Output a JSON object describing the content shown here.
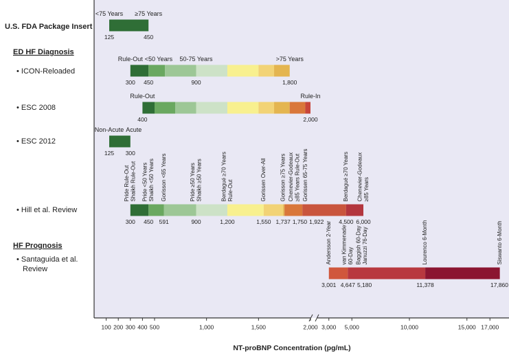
{
  "chart_data": {
    "type": "threshold-bands",
    "x_label": "NT-proBNP Concentration (pg/mL)",
    "xlim_segments": [
      [
        0,
        500
      ],
      [
        500,
        2000
      ],
      [
        2000,
        18000
      ]
    ],
    "xticks": [
      100,
      200,
      300,
      400,
      500,
      {
        "value": 1000,
        "label": "1,000"
      },
      {
        "value": 1500,
        "label": "1,500"
      },
      {
        "value": 2000,
        "label": "2,000"
      },
      {
        "value": 3000,
        "label": "3,000"
      },
      {
        "value": 5000,
        "label": "5,000"
      },
      {
        "value": 10000,
        "label": "10,000"
      },
      {
        "value": 15000,
        "label": "15,000"
      },
      {
        "value": 17000,
        "label": "17,000"
      }
    ],
    "headings": [
      "ED HF Diagnosis",
      "HF Prognosis"
    ],
    "rows": [
      {
        "label": [
          "U.S. FDA Package Insert"
        ],
        "name_orientation": "horizontal",
        "bands": [
          {
            "from": 125,
            "to": 450,
            "color": "#2f6e36"
          }
        ],
        "thresholds": [
          {
            "value": 125,
            "name": [
              "<75 Years"
            ]
          },
          {
            "value": 450,
            "name": [
              "≥75 Years"
            ]
          }
        ]
      },
      {
        "label": [
          "• ICON-Reloaded"
        ],
        "name_orientation": "horizontal",
        "bands": [
          {
            "from": 300,
            "to": 450,
            "color": "#2f6e36"
          },
          {
            "from": 450,
            "to": 600,
            "color": "#6aa860"
          },
          {
            "from": 600,
            "to": 900,
            "color": "#9dc796"
          },
          {
            "from": 900,
            "to": 1200,
            "color": "#cde2c7"
          },
          {
            "from": 1200,
            "to": 1500,
            "color": "#f8f08f"
          },
          {
            "from": 1500,
            "to": 1650,
            "color": "#f2d376"
          },
          {
            "from": 1650,
            "to": 1800,
            "color": "#e4b550"
          }
        ],
        "thresholds": [
          {
            "value": 300,
            "name": [
              "Rule-Out"
            ]
          },
          {
            "value": 450,
            "name": [
              "<50 Years"
            ]
          },
          {
            "value": 900,
            "name": [
              "50-75 Years"
            ]
          },
          {
            "value": 1800,
            "label": "1,800",
            "name": [
              ">75 Years"
            ]
          }
        ]
      },
      {
        "label": [
          "• ESC 2008"
        ],
        "name_orientation": "horizontal",
        "bands": [
          {
            "from": 400,
            "to": 500,
            "color": "#2f6e36"
          },
          {
            "from": 500,
            "to": 700,
            "color": "#6aa860"
          },
          {
            "from": 700,
            "to": 900,
            "color": "#9dc796"
          },
          {
            "from": 900,
            "to": 1200,
            "color": "#cde2c7"
          },
          {
            "from": 1200,
            "to": 1500,
            "color": "#f8f08f"
          },
          {
            "from": 1500,
            "to": 1650,
            "color": "#f2d376"
          },
          {
            "from": 1650,
            "to": 1800,
            "color": "#e4b550"
          },
          {
            "from": 1800,
            "to": 1950,
            "color": "#d9773a"
          },
          {
            "from": 1950,
            "to": 2000,
            "color": "#c8453a"
          }
        ],
        "thresholds": [
          {
            "value": 400,
            "name": [
              "Rule-Out"
            ]
          },
          {
            "value": 2000,
            "label": "2,000",
            "name": [
              "Rule-In"
            ]
          }
        ]
      },
      {
        "label": [
          "• ESC 2012"
        ],
        "name_orientation": "horizontal",
        "bands": [
          {
            "from": 125,
            "to": 300,
            "color": "#2f6e36"
          }
        ],
        "thresholds": [
          {
            "value": 125,
            "name": [
              "Non-Acute"
            ]
          },
          {
            "value": 300,
            "name": [
              "Acute"
            ]
          }
        ]
      },
      {
        "label": [
          "• Hill et al. Review"
        ],
        "name_orientation": "vertical",
        "bands": [
          {
            "from": 300,
            "to": 450,
            "color": "#2f6e36"
          },
          {
            "from": 450,
            "to": 591,
            "color": "#6aa860"
          },
          {
            "from": 591,
            "to": 900,
            "color": "#9dc796"
          },
          {
            "from": 900,
            "to": 1200,
            "color": "#cde2c7"
          },
          {
            "from": 1200,
            "to": 1550,
            "color": "#f8f08f"
          },
          {
            "from": 1550,
            "to": 1737,
            "color": "#f2d376"
          },
          {
            "from": 1737,
            "to": 1750,
            "color": "#e4b550"
          },
          {
            "from": 1750,
            "to": 1922,
            "color": "#d9773a"
          },
          {
            "from": 1922,
            "to": 4500,
            "color": "#c9553d"
          },
          {
            "from": 4500,
            "to": 6000,
            "color": "#b3363e"
          }
        ],
        "thresholds": [
          {
            "value": 300,
            "name": [
              "Pride Rule-Out",
              "Shaikh Rule-Out"
            ]
          },
          {
            "value": 450,
            "name": [
              "Pride <50 Years",
              "Shaikh <50 Years"
            ]
          },
          {
            "value": 591,
            "name": [
              "Gorisson <65 Years"
            ]
          },
          {
            "value": 900,
            "name": [
              "Pride ≥50 Years",
              "Shaikh ≥50 Years"
            ]
          },
          {
            "value": 1200,
            "label": "1,200",
            "name": [
              "Berdagué ≥70 Years",
              "Rule-Out"
            ]
          },
          {
            "value": 1550,
            "label": "1,550",
            "name": [
              "Gorissen Over-All"
            ]
          },
          {
            "value": 1737,
            "label": "1,737",
            "name": [
              "Gorisson ≥75 Years"
            ]
          },
          {
            "value": 1750,
            "label": "1,750",
            "name": [
              "Chenevier-Godeaux",
              "≥85 Years Rule-Out"
            ]
          },
          {
            "value": 1922,
            "label": "1,922",
            "name": [
              "Gorissen 65-75 Years"
            ]
          },
          {
            "value": 4500,
            "label": "4,500",
            "name": [
              "Berdagué ≥70 Years"
            ]
          },
          {
            "value": 6000,
            "label": "6,000",
            "name": [
              "Chenevier-Godeaux",
              "≥85 Years"
            ]
          }
        ]
      },
      {
        "label": [
          "• Santaguida et al.",
          "Review"
        ],
        "name_orientation": "vertical",
        "bands": [
          {
            "from": 3001,
            "to": 4647,
            "color": "#d0573c"
          },
          {
            "from": 4647,
            "to": 11378,
            "color": "#b8383f"
          },
          {
            "from": 11378,
            "to": 17860,
            "color": "#8b1531"
          }
        ],
        "thresholds": [
          {
            "value": 3001,
            "label": "3,001",
            "name": [
              "Andersson 2-Year"
            ]
          },
          {
            "value": 4647,
            "label": "4,647",
            "name": [
              "van Kimmenade",
              "60-Day"
            ]
          },
          {
            "value": 5180,
            "label": "5,180",
            "name": [
              "Baggish 60-Day",
              "Januzzi 76-Day"
            ]
          },
          {
            "value": 11378,
            "label": "11,378",
            "name": [
              "Lourenco 6-Month"
            ]
          },
          {
            "value": 17860,
            "label": "17,860",
            "name": [
              "Siswanto 6-Month"
            ]
          }
        ]
      }
    ]
  }
}
